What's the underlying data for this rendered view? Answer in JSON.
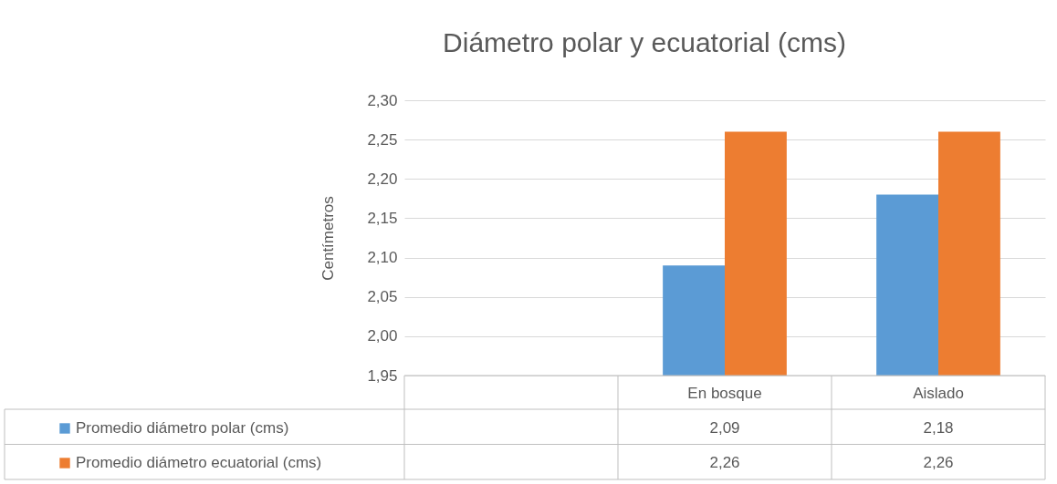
{
  "chart_data": {
    "type": "bar",
    "title": "Diámetro polar y ecuatorial (cms)",
    "ylabel": "Centímetros",
    "categories": [
      null,
      "En bosque",
      "Aislado"
    ],
    "series": [
      {
        "name": "Promedio diámetro polar (cms)",
        "color": "#5b9bd5",
        "values": [
          null,
          2.09,
          2.18
        ],
        "value_labels": [
          null,
          "2,09",
          "2,18"
        ]
      },
      {
        "name": "Promedio diámetro ecuatorial (cms)",
        "color": "#ed7d31",
        "values": [
          null,
          2.26,
          2.26
        ],
        "value_labels": [
          null,
          "2,26",
          "2,26"
        ]
      }
    ],
    "ylim": [
      1.95,
      2.3
    ],
    "yticks": [
      {
        "value": 1.95,
        "label": "1,95"
      },
      {
        "value": 2.0,
        "label": "2,00"
      },
      {
        "value": 2.05,
        "label": "2,05"
      },
      {
        "value": 2.1,
        "label": "2,10"
      },
      {
        "value": 2.15,
        "label": "2,15"
      },
      {
        "value": 2.2,
        "label": "2,20"
      },
      {
        "value": 2.25,
        "label": "2,25"
      },
      {
        "value": 2.3,
        "label": "2,30"
      }
    ],
    "grid": "y",
    "legend": "bottom left"
  }
}
